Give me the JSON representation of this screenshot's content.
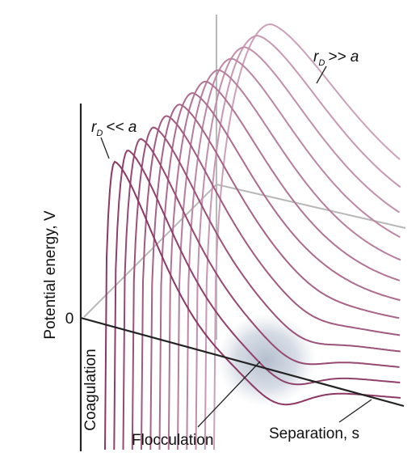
{
  "labels": {
    "top_curve": {
      "symbol": "r",
      "subscript": "D",
      "relation": ">> a"
    },
    "front_curve": {
      "symbol": "r",
      "subscript": "D",
      "relation": "<< a"
    },
    "y_axis": "Potential energy, V",
    "origin": "0",
    "coagulation": "Coagulation",
    "flocculation": "Flocculation",
    "x_axis": "Separation, s"
  }
}
